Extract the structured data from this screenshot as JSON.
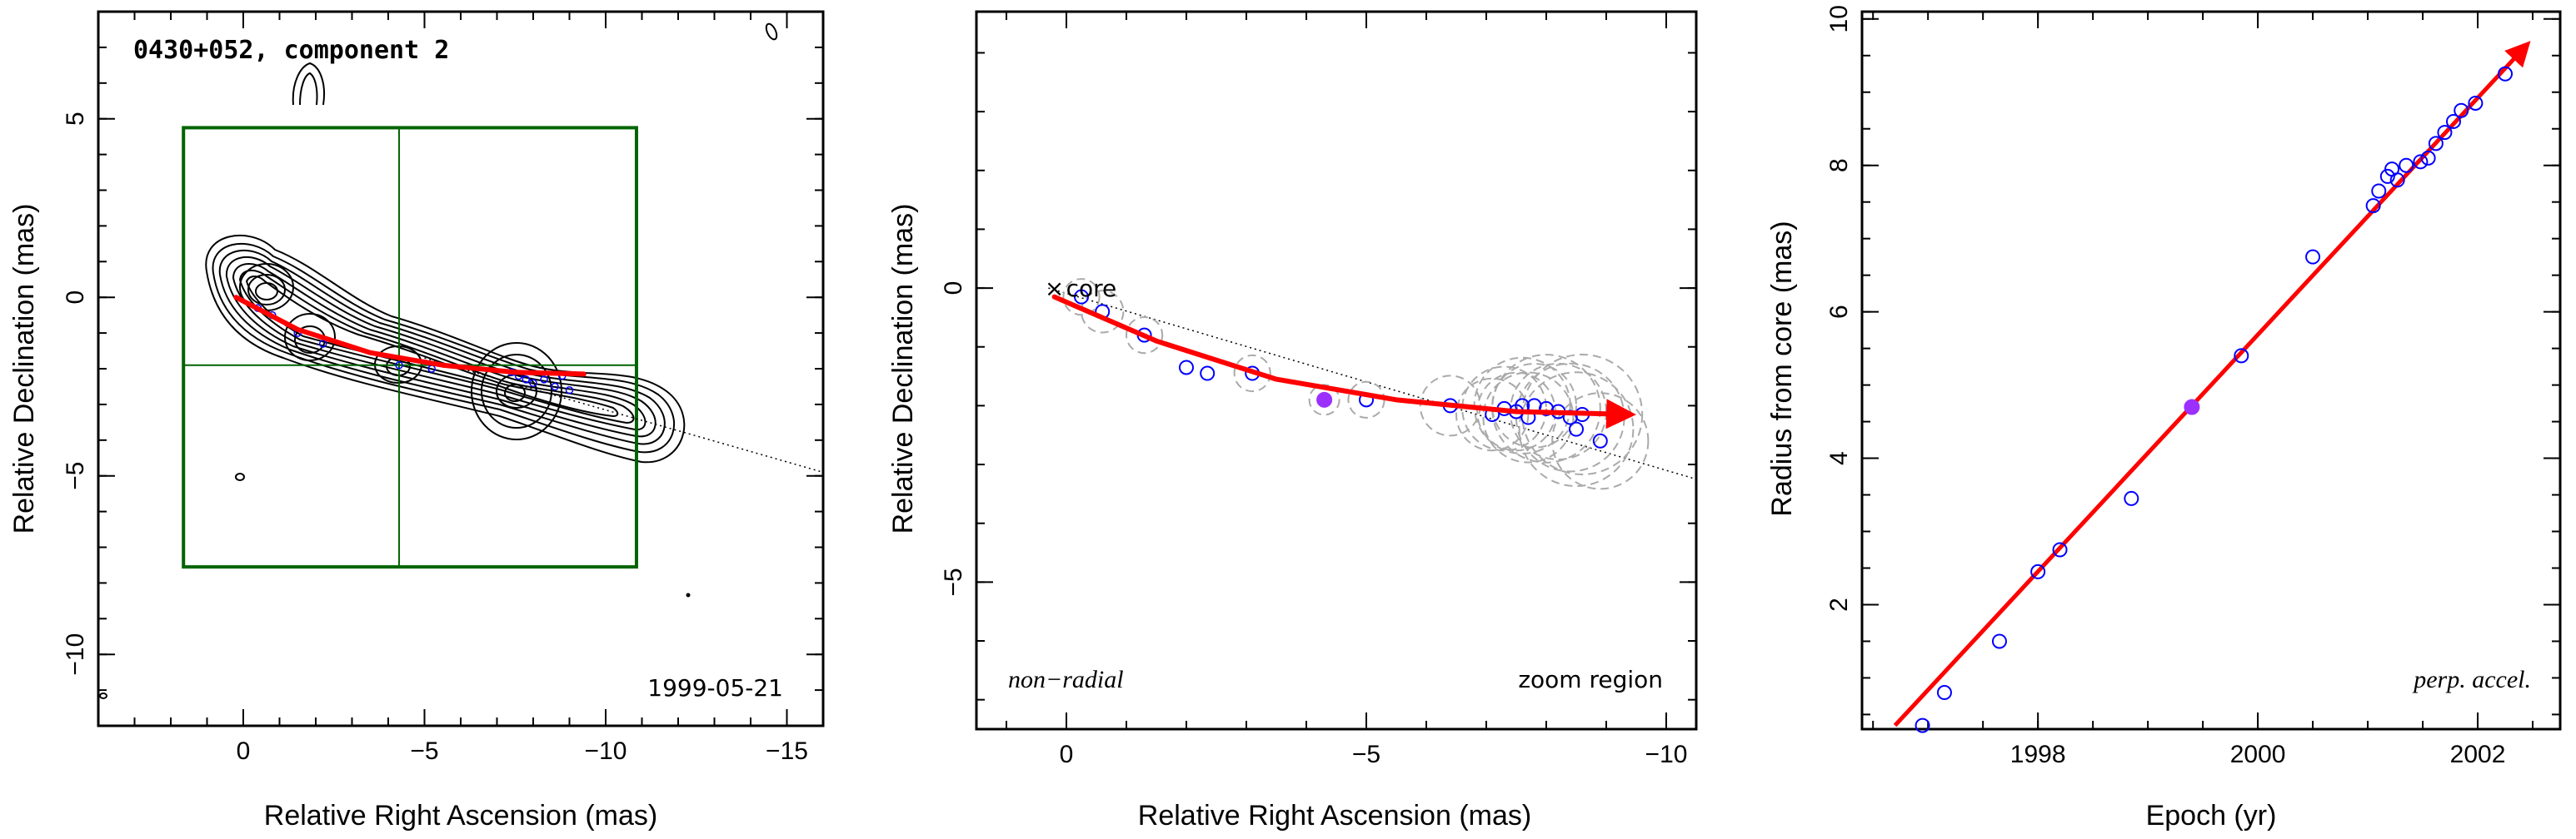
{
  "chart_data": [
    {
      "type": "scatter",
      "panel": "left",
      "title": "0430+052, component 2",
      "date_label": "1999-05-21",
      "xlabel": "Relative Right Ascension (mas)",
      "ylabel": "Relative Declination (mas)",
      "xlim": [
        4,
        -16
      ],
      "ylim": [
        -12,
        8
      ],
      "xticks": [
        0,
        -5,
        -10,
        -15
      ],
      "yticks": [
        5,
        0,
        -5,
        -10
      ],
      "xtick_labels": [
        "0",
        "−5",
        "−10",
        "−15"
      ],
      "ytick_labels": [
        "5",
        "0",
        "−5",
        "−10"
      ],
      "zoom_box": {
        "x": [
          1.65,
          -10.85
        ],
        "y": [
          4.75,
          -7.55
        ]
      },
      "crosshair": {
        "x": -4.3,
        "y": -1.9
      },
      "trajectory": [
        [
          0.2,
          0
        ],
        [
          -1.5,
          -0.9
        ],
        [
          -3.5,
          -1.55
        ],
        [
          -5.5,
          -1.9
        ],
        [
          -7.5,
          -2.1
        ],
        [
          -9.4,
          -2.15
        ]
      ],
      "points": [
        [
          -0.4,
          -0.3
        ],
        [
          -0.8,
          -0.5
        ],
        [
          -1.5,
          -1.0
        ],
        [
          -2.2,
          -1.3
        ],
        [
          -4.3,
          -1.9
        ],
        [
          -5.2,
          -2.0
        ],
        [
          -7.4,
          -2.1
        ],
        [
          -7.6,
          -2.2
        ],
        [
          -7.8,
          -2.3
        ],
        [
          -8.0,
          -2.4
        ],
        [
          -8.3,
          -2.3
        ],
        [
          -8.6,
          -2.5
        ],
        [
          -8.8,
          -2.2
        ],
        [
          -9.0,
          -2.6
        ]
      ],
      "extension_line": [
        [
          -5.0,
          -1.7
        ],
        [
          -16,
          -4.9
        ]
      ],
      "colors": {
        "trajectory": "#ff0000",
        "box": "#006400",
        "points": "#0000ff",
        "contours": "#000000"
      }
    },
    {
      "type": "scatter",
      "panel": "middle",
      "xlabel": "Relative Right Ascension (mas)",
      "ylabel": "Relative Declination (mas)",
      "xlim": [
        1.5,
        -10.5
      ],
      "ylim": [
        -7.5,
        4.7
      ],
      "xticks": [
        0,
        -5,
        -10
      ],
      "yticks": [
        0,
        -5
      ],
      "xtick_labels": [
        "0",
        "−5",
        "−10"
      ],
      "ytick_labels": [
        "0",
        "−5"
      ],
      "core_label": "core",
      "core_marker": "×",
      "core_position": [
        0.2,
        0.0
      ],
      "annotations": {
        "left": "non−radial",
        "right": "zoom region"
      },
      "dotted_line": [
        [
          0.3,
          0.0
        ],
        [
          -10.5,
          -3.25
        ]
      ],
      "trajectory": [
        [
          0.2,
          -0.15
        ],
        [
          -1.5,
          -0.9
        ],
        [
          -3.5,
          -1.55
        ],
        [
          -5.5,
          -1.9
        ],
        [
          -7.5,
          -2.1
        ],
        [
          -9.4,
          -2.15
        ]
      ],
      "points": [
        {
          "x": -0.25,
          "y": -0.15,
          "r": 0.3
        },
        {
          "x": -0.6,
          "y": -0.4,
          "r": 0.35
        },
        {
          "x": -1.3,
          "y": -0.8,
          "r": 0.3
        },
        {
          "x": -2.0,
          "y": -1.35,
          "r": 0.0
        },
        {
          "x": -2.35,
          "y": -1.45,
          "r": 0.0
        },
        {
          "x": -3.1,
          "y": -1.45,
          "r": 0.3
        },
        {
          "x": -5.0,
          "y": -1.9,
          "r": 0.3
        },
        {
          "x": -6.4,
          "y": -2.0,
          "r": 0.5
        },
        {
          "x": -7.1,
          "y": -2.15,
          "r": 0.6
        },
        {
          "x": -7.3,
          "y": -2.05,
          "r": 0.7
        },
        {
          "x": -7.5,
          "y": -2.1,
          "r": 0.65
        },
        {
          "x": -7.6,
          "y": -2.0,
          "r": 0.8
        },
        {
          "x": -7.7,
          "y": -2.2,
          "r": 0.75
        },
        {
          "x": -7.8,
          "y": -2.0,
          "r": 0.7
        },
        {
          "x": -8.0,
          "y": -2.05,
          "r": 0.9
        },
        {
          "x": -8.2,
          "y": -2.1,
          "r": 0.8
        },
        {
          "x": -8.4,
          "y": -2.2,
          "r": 0.9
        },
        {
          "x": -8.5,
          "y": -2.4,
          "r": 0.95
        },
        {
          "x": -8.6,
          "y": -2.15,
          "r": 1.0
        },
        {
          "x": -8.9,
          "y": -2.6,
          "r": 0.8
        }
      ],
      "highlight": {
        "x": -4.3,
        "y": -1.9
      },
      "colors": {
        "trajectory": "#ff0000",
        "points": "#0000ff",
        "highlight": "#9b30ff",
        "errors": "#aaaaaa"
      }
    },
    {
      "type": "scatter",
      "panel": "right",
      "xlabel": "Epoch (yr)",
      "ylabel": "Radius from core (mas)",
      "xlim": [
        1996.4,
        2002.75
      ],
      "ylim": [
        0.3,
        10.1
      ],
      "xticks": [
        1998,
        2000,
        2002
      ],
      "yticks": [
        2,
        4,
        6,
        8,
        10
      ],
      "xtick_labels": [
        "1998",
        "2000",
        "2002"
      ],
      "ytick_labels": [
        "2",
        "4",
        "6",
        "8",
        "10"
      ],
      "annotation": "perp. accel.",
      "fit_line": [
        [
          1996.7,
          0.35
        ],
        [
          2002.45,
          9.65
        ]
      ],
      "points": [
        [
          1996.95,
          0.35
        ],
        [
          1997.15,
          0.8
        ],
        [
          1997.65,
          1.5
        ],
        [
          1998.0,
          2.45
        ],
        [
          1998.2,
          2.75
        ],
        [
          1998.85,
          3.45
        ],
        [
          1999.85,
          5.4
        ],
        [
          2000.5,
          6.75
        ],
        [
          2001.05,
          7.45
        ],
        [
          2001.1,
          7.65
        ],
        [
          2001.18,
          7.85
        ],
        [
          2001.22,
          7.95
        ],
        [
          2001.27,
          7.8
        ],
        [
          2001.35,
          8.0
        ],
        [
          2001.48,
          8.05
        ],
        [
          2001.55,
          8.1
        ],
        [
          2001.62,
          8.3
        ],
        [
          2001.7,
          8.45
        ],
        [
          2001.78,
          8.6
        ],
        [
          2001.85,
          8.75
        ],
        [
          2001.98,
          8.85
        ],
        [
          2002.25,
          9.25
        ]
      ],
      "highlight": [
        1999.4,
        4.7
      ],
      "colors": {
        "fit": "#ff0000",
        "points": "#0000ff",
        "highlight": "#9b30ff"
      }
    }
  ]
}
